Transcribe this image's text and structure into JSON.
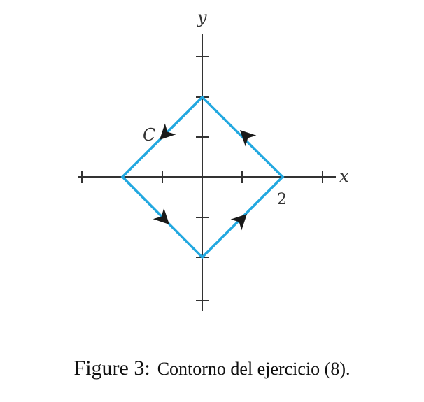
{
  "figure": {
    "axis_labels": {
      "x": "x",
      "y": "y"
    },
    "tick_label_2": "2",
    "contour_label": "C",
    "vertices": [
      [
        2,
        0
      ],
      [
        0,
        2
      ],
      [
        -2,
        0
      ],
      [
        0,
        -2
      ]
    ],
    "orientation": "counterclockwise",
    "x_range": [
      -3,
      3
    ],
    "y_range": [
      -3,
      4
    ],
    "contour_color": "#22a8e0",
    "axis_color": "#333333"
  },
  "caption": {
    "number": "Figure 3:",
    "text": "Contorno del ejercicio (8)."
  }
}
